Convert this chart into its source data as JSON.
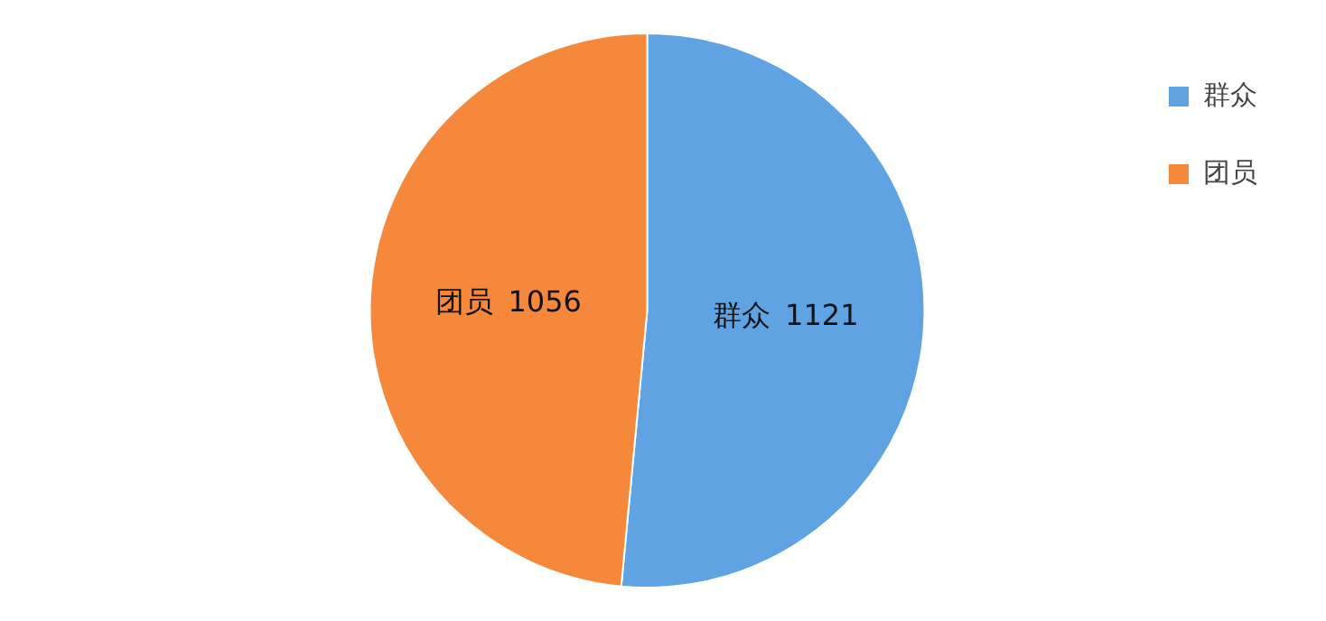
{
  "chart_data": {
    "type": "pie",
    "categories": [
      "群众",
      "团员"
    ],
    "values": [
      1121,
      1056
    ],
    "colors": [
      "#5fa3e3",
      "#f5883a"
    ],
    "data_labels": true,
    "legend": "top right"
  }
}
